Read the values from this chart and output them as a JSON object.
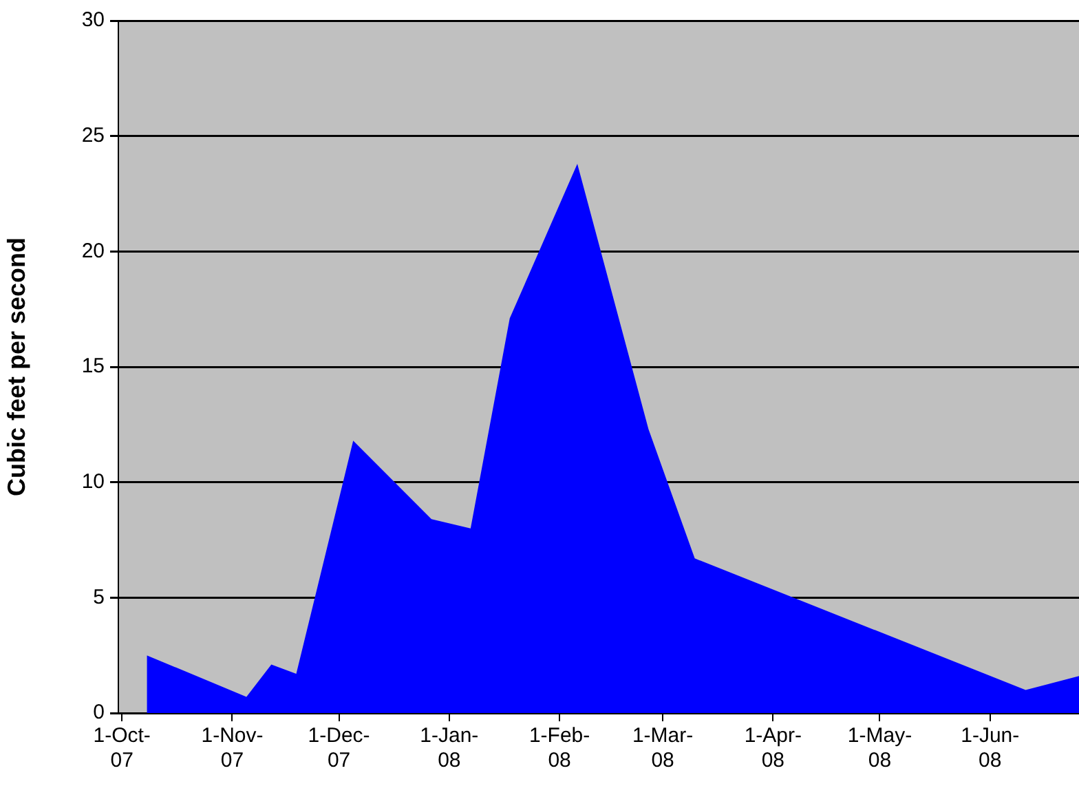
{
  "chart_data": {
    "type": "area",
    "ylabel": "Cubic feet per second",
    "x": [
      "2007-10-08",
      "2007-11-05",
      "2007-11-12",
      "2007-11-19",
      "2007-12-05",
      "2007-12-27",
      "2008-01-07",
      "2008-01-18",
      "2008-02-06",
      "2008-02-26",
      "2008-03-10",
      "2008-06-11",
      "2008-06-26"
    ],
    "series": [
      {
        "color": "#0000ff",
        "values": [
          2.5,
          0.7,
          2.1,
          1.7,
          11.8,
          8.4,
          8.0,
          17.1,
          23.8,
          12.3,
          6.7,
          1.0,
          1.6
        ]
      }
    ],
    "xlim": [
      "2007-09-30",
      "2008-06-26"
    ],
    "xticks": [
      {
        "value": "2007-10-01",
        "label": "1-Oct-07"
      },
      {
        "value": "2007-11-01",
        "label": "1-Nov-07"
      },
      {
        "value": "2007-12-01",
        "label": "1-Dec-07"
      },
      {
        "value": "2008-01-01",
        "label": "1-Jan-08"
      },
      {
        "value": "2008-02-01",
        "label": "1-Feb-08"
      },
      {
        "value": "2008-03-01",
        "label": "1-Mar-08"
      },
      {
        "value": "2008-04-01",
        "label": "1-Apr-08"
      },
      {
        "value": "2008-05-01",
        "label": "1-May-08"
      },
      {
        "value": "2008-06-01",
        "label": "1-Jun-08"
      }
    ],
    "ylim": [
      0,
      30
    ],
    "yticks": [
      0,
      5,
      10,
      15,
      20,
      25,
      30
    ],
    "grid": "y",
    "legend": false
  }
}
